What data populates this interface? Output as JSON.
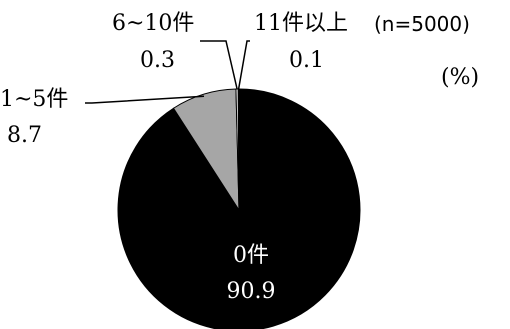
{
  "chart_data": {
    "type": "pie",
    "sample_note": "(n=5000)",
    "unit": "(%)",
    "slices": [
      {
        "label": "0件",
        "value": 90.9,
        "display": "90.9",
        "color": "#000000"
      },
      {
        "label": "1~5件",
        "value": 8.7,
        "display": "8.7",
        "color": "#a6a6a6"
      },
      {
        "label": "6~10件",
        "value": 0.3,
        "display": "0.3",
        "color": "#ffffff"
      },
      {
        "label": "11件以上",
        "value": 0.1,
        "display": "0.1",
        "color": "#ffffff"
      }
    ]
  }
}
